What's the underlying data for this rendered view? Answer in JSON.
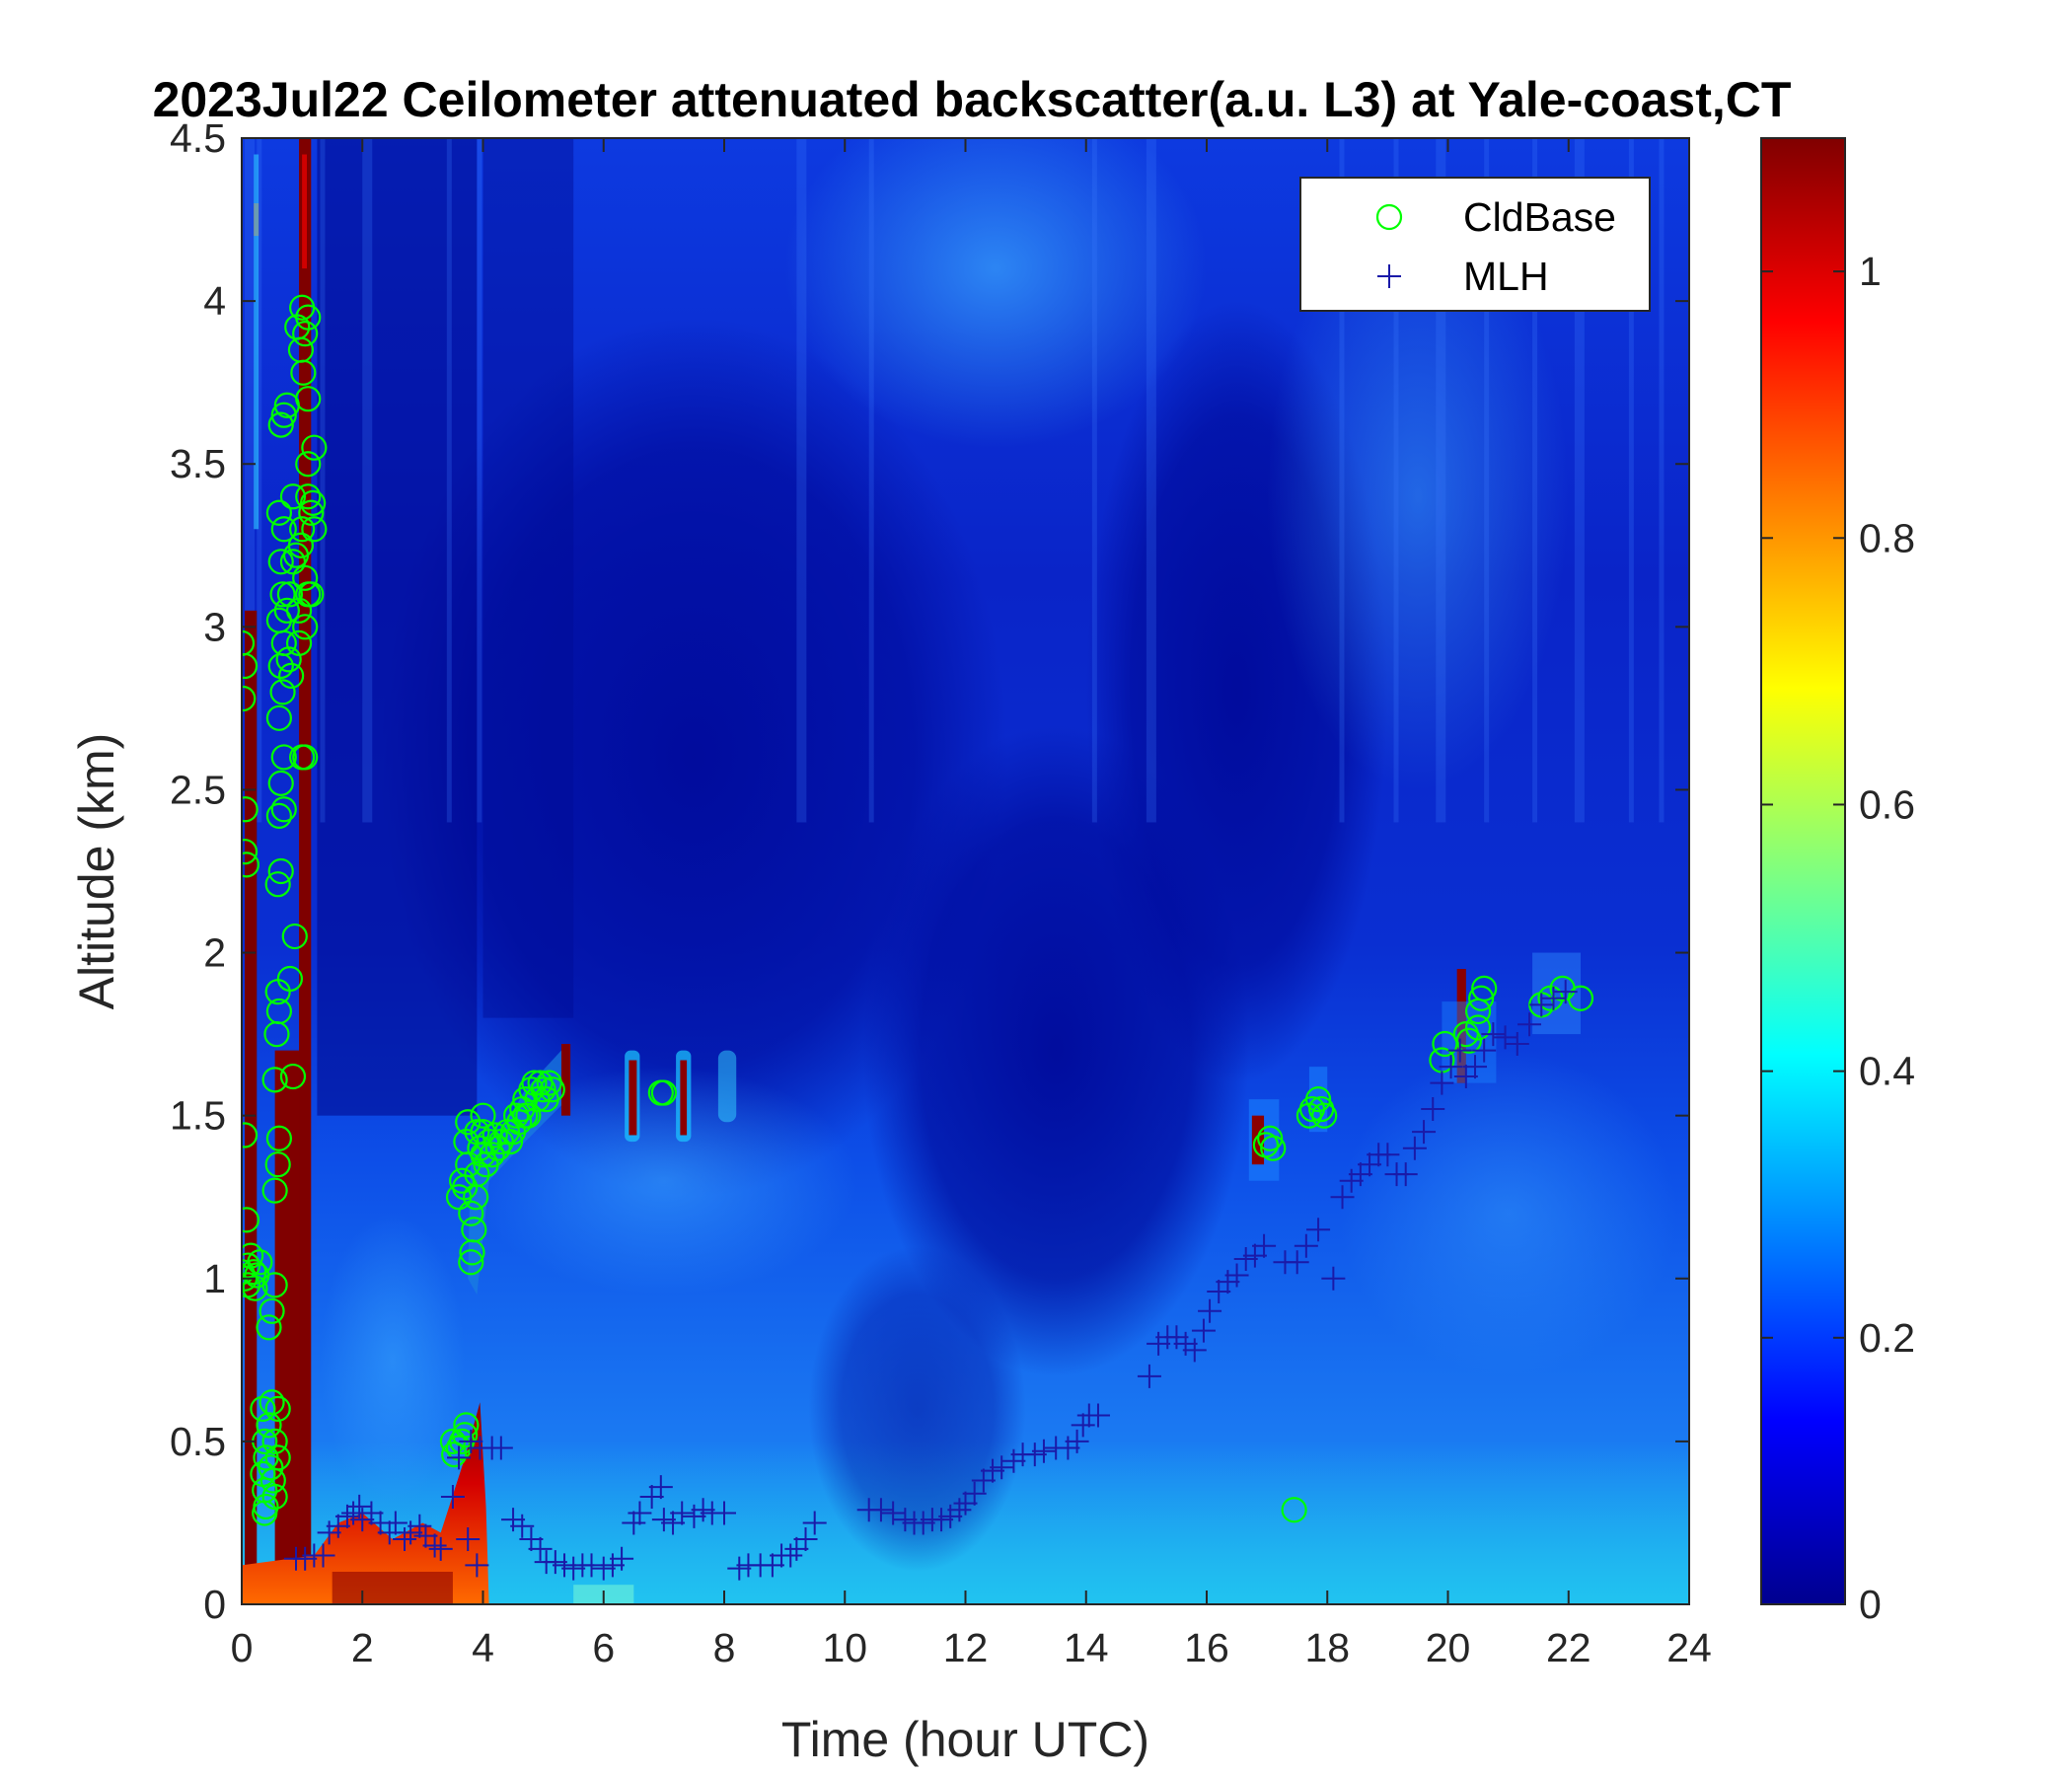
{
  "chart_data": {
    "type": "heatmap",
    "title": "2023Jul22 Ceilometer attenuated backscatter(a.u. L3) at Yale-coast,CT",
    "xlabel": "Time (hour UTC)",
    "ylabel": "Altitude (km)",
    "xlim": [
      0,
      24
    ],
    "ylim": [
      0,
      4.5
    ],
    "xticks": [
      "0",
      "2",
      "4",
      "6",
      "8",
      "10",
      "12",
      "14",
      "16",
      "18",
      "20",
      "22",
      "24"
    ],
    "yticks": [
      "0",
      "0.5",
      "1",
      "1.5",
      "2",
      "2.5",
      "3",
      "3.5",
      "4",
      "4.5"
    ],
    "colorbar": {
      "colormap": "jet",
      "clim": [
        0,
        1.1
      ],
      "ticks": [
        "0",
        "0.2",
        "0.4",
        "0.6",
        "0.8",
        "1"
      ]
    },
    "legend": {
      "position": "top-right",
      "entries": [
        {
          "label": "CldBase",
          "marker": "circle",
          "color": "#00ff00"
        },
        {
          "label": "MLH",
          "marker": "plus",
          "color": "#1a1aa8"
        }
      ]
    },
    "series": [
      {
        "name": "CldBase",
        "marker": "circle",
        "color": "#00ff00",
        "points": [
          [
            0.0,
            2.95
          ],
          [
            0.02,
            2.78
          ],
          [
            0.05,
            2.88
          ],
          [
            0.05,
            2.31
          ],
          [
            0.08,
            2.27
          ],
          [
            0.06,
            2.44
          ],
          [
            0.05,
            1.44
          ],
          [
            0.08,
            1.18
          ],
          [
            0.0,
            1.02
          ],
          [
            0.05,
            1.0
          ],
          [
            0.1,
            1.04
          ],
          [
            0.15,
            1.07
          ],
          [
            0.2,
            1.02
          ],
          [
            0.25,
            1.01
          ],
          [
            0.3,
            1.05
          ],
          [
            0.1,
            0.98
          ],
          [
            0.22,
            0.97
          ],
          [
            0.35,
            0.6
          ],
          [
            0.38,
            0.5
          ],
          [
            0.4,
            0.45
          ],
          [
            0.35,
            0.4
          ],
          [
            0.38,
            0.35
          ],
          [
            0.4,
            0.3
          ],
          [
            0.38,
            0.28
          ],
          [
            0.45,
            0.55
          ],
          [
            0.48,
            0.42
          ],
          [
            0.5,
            0.62
          ],
          [
            0.52,
            0.38
          ],
          [
            0.55,
            0.5
          ],
          [
            0.55,
            0.33
          ],
          [
            0.6,
            0.45
          ],
          [
            0.6,
            0.6
          ],
          [
            0.45,
            0.85
          ],
          [
            0.5,
            0.9
          ],
          [
            0.55,
            0.98
          ],
          [
            0.55,
            1.27
          ],
          [
            0.6,
            1.35
          ],
          [
            0.62,
            1.43
          ],
          [
            0.55,
            1.61
          ],
          [
            0.58,
            1.75
          ],
          [
            0.62,
            1.82
          ],
          [
            0.6,
            1.88
          ],
          [
            0.6,
            2.21
          ],
          [
            0.65,
            2.25
          ],
          [
            0.62,
            2.42
          ],
          [
            0.7,
            2.44
          ],
          [
            0.65,
            2.52
          ],
          [
            0.7,
            2.6
          ],
          [
            0.62,
            2.72
          ],
          [
            0.68,
            2.8
          ],
          [
            0.65,
            2.88
          ],
          [
            0.7,
            2.95
          ],
          [
            0.62,
            3.02
          ],
          [
            0.68,
            3.1
          ],
          [
            0.65,
            3.2
          ],
          [
            0.62,
            3.35
          ],
          [
            0.7,
            3.3
          ],
          [
            0.65,
            3.62
          ],
          [
            0.7,
            3.65
          ],
          [
            0.75,
            3.68
          ],
          [
            0.75,
            3.05
          ],
          [
            0.8,
            3.1
          ],
          [
            0.78,
            2.9
          ],
          [
            0.82,
            2.85
          ],
          [
            0.85,
            3.2
          ],
          [
            0.85,
            3.4
          ],
          [
            0.9,
            3.22
          ],
          [
            0.8,
            1.92
          ],
          [
            0.85,
            1.62
          ],
          [
            0.88,
            2.05
          ],
          [
            0.95,
            2.95
          ],
          [
            0.95,
            3.05
          ],
          [
            0.98,
            3.25
          ],
          [
            1.0,
            3.3
          ],
          [
            1.05,
            3.15
          ],
          [
            1.05,
            3.0
          ],
          [
            1.1,
            3.4
          ],
          [
            1.1,
            3.5
          ],
          [
            1.1,
            3.1
          ],
          [
            1.15,
            3.35
          ],
          [
            1.18,
            3.38
          ],
          [
            1.2,
            3.3
          ],
          [
            0.92,
            3.92
          ],
          [
            0.98,
            3.85
          ],
          [
            1.0,
            3.98
          ],
          [
            1.05,
            3.9
          ],
          [
            1.1,
            3.95
          ],
          [
            1.02,
            3.78
          ],
          [
            1.1,
            3.7
          ],
          [
            1.2,
            3.55
          ],
          [
            1.0,
            2.6
          ],
          [
            1.05,
            2.6
          ],
          [
            1.15,
            3.1
          ],
          [
            3.5,
            0.5
          ],
          [
            3.52,
            0.46
          ],
          [
            3.6,
            0.48
          ],
          [
            3.7,
            0.52
          ],
          [
            3.72,
            0.55
          ],
          [
            3.65,
            0.5
          ],
          [
            3.6,
            1.25
          ],
          [
            3.65,
            1.3
          ],
          [
            3.7,
            1.28
          ],
          [
            3.72,
            1.42
          ],
          [
            3.75,
            1.48
          ],
          [
            3.75,
            1.35
          ],
          [
            3.8,
            1.2
          ],
          [
            3.82,
            1.08
          ],
          [
            3.8,
            1.05
          ],
          [
            3.85,
            1.15
          ],
          [
            3.88,
            1.25
          ],
          [
            3.9,
            1.32
          ],
          [
            3.95,
            1.4
          ],
          [
            4.0,
            1.45
          ],
          [
            4.0,
            1.38
          ],
          [
            4.05,
            1.35
          ],
          [
            4.1,
            1.42
          ],
          [
            4.15,
            1.38
          ],
          [
            4.2,
            1.44
          ],
          [
            4.25,
            1.4
          ],
          [
            4.3,
            1.42
          ],
          [
            4.4,
            1.45
          ],
          [
            4.5,
            1.45
          ],
          [
            4.55,
            1.5
          ],
          [
            4.6,
            1.48
          ],
          [
            4.65,
            1.52
          ],
          [
            4.7,
            1.55
          ],
          [
            4.75,
            1.5
          ],
          [
            4.8,
            1.58
          ],
          [
            4.85,
            1.6
          ],
          [
            4.9,
            1.55
          ],
          [
            4.95,
            1.6
          ],
          [
            5.0,
            1.58
          ],
          [
            5.05,
            1.55
          ],
          [
            5.1,
            1.6
          ],
          [
            5.15,
            1.58
          ],
          [
            3.9,
            1.45
          ],
          [
            4.0,
            1.5
          ],
          [
            4.45,
            1.42
          ],
          [
            4.7,
            1.5
          ],
          [
            6.95,
            1.57
          ],
          [
            7.0,
            1.57
          ],
          [
            16.98,
            1.41
          ],
          [
            17.05,
            1.43
          ],
          [
            17.1,
            1.4
          ],
          [
            17.45,
            0.29
          ],
          [
            17.7,
            1.5
          ],
          [
            17.75,
            1.52
          ],
          [
            17.85,
            1.55
          ],
          [
            17.9,
            1.52
          ],
          [
            17.95,
            1.5
          ],
          [
            19.9,
            1.67
          ],
          [
            19.95,
            1.72
          ],
          [
            20.3,
            1.75
          ],
          [
            20.35,
            1.73
          ],
          [
            20.5,
            1.77
          ],
          [
            20.5,
            1.82
          ],
          [
            20.55,
            1.86
          ],
          [
            20.6,
            1.89
          ],
          [
            21.55,
            1.84
          ],
          [
            21.7,
            1.86
          ],
          [
            21.9,
            1.89
          ],
          [
            22.2,
            1.86
          ]
        ]
      },
      {
        "name": "MLH",
        "marker": "plus",
        "color": "#1a1aa8",
        "points": [
          [
            0.9,
            0.14
          ],
          [
            1.05,
            0.14
          ],
          [
            1.2,
            0.15
          ],
          [
            1.35,
            0.15
          ],
          [
            1.45,
            0.22
          ],
          [
            1.6,
            0.24
          ],
          [
            1.75,
            0.27
          ],
          [
            1.85,
            0.28
          ],
          [
            1.95,
            0.3
          ],
          [
            2.0,
            0.26
          ],
          [
            2.15,
            0.28
          ],
          [
            2.3,
            0.25
          ],
          [
            2.45,
            0.22
          ],
          [
            2.55,
            0.25
          ],
          [
            2.7,
            0.2
          ],
          [
            2.8,
            0.22
          ],
          [
            2.95,
            0.24
          ],
          [
            3.05,
            0.21
          ],
          [
            3.2,
            0.18
          ],
          [
            3.3,
            0.17
          ],
          [
            3.5,
            0.33
          ],
          [
            3.6,
            0.45
          ],
          [
            3.8,
            0.5
          ],
          [
            3.95,
            0.48
          ],
          [
            4.15,
            0.48
          ],
          [
            4.3,
            0.48
          ],
          [
            3.9,
            0.12
          ],
          [
            3.75,
            0.2
          ],
          [
            4.5,
            0.26
          ],
          [
            4.65,
            0.24
          ],
          [
            4.8,
            0.2
          ],
          [
            4.95,
            0.17
          ],
          [
            5.05,
            0.13
          ],
          [
            5.2,
            0.13
          ],
          [
            5.35,
            0.12
          ],
          [
            5.5,
            0.11
          ],
          [
            5.65,
            0.12
          ],
          [
            5.8,
            0.12
          ],
          [
            6.0,
            0.11
          ],
          [
            6.15,
            0.12
          ],
          [
            6.3,
            0.14
          ],
          [
            6.5,
            0.25
          ],
          [
            6.6,
            0.28
          ],
          [
            6.8,
            0.33
          ],
          [
            6.95,
            0.36
          ],
          [
            7.0,
            0.26
          ],
          [
            7.15,
            0.25
          ],
          [
            7.3,
            0.28
          ],
          [
            7.5,
            0.27
          ],
          [
            7.65,
            0.29
          ],
          [
            7.8,
            0.28
          ],
          [
            8.0,
            0.28
          ],
          [
            8.25,
            0.11
          ],
          [
            8.4,
            0.12
          ],
          [
            8.6,
            0.12
          ],
          [
            8.8,
            0.12
          ],
          [
            8.95,
            0.15
          ],
          [
            9.1,
            0.15
          ],
          [
            9.2,
            0.17
          ],
          [
            9.35,
            0.2
          ],
          [
            9.5,
            0.25
          ],
          [
            10.4,
            0.29
          ],
          [
            10.6,
            0.29
          ],
          [
            10.8,
            0.28
          ],
          [
            11.0,
            0.26
          ],
          [
            11.15,
            0.25
          ],
          [
            11.3,
            0.25
          ],
          [
            11.45,
            0.26
          ],
          [
            11.6,
            0.26
          ],
          [
            11.75,
            0.27
          ],
          [
            11.9,
            0.29
          ],
          [
            12.0,
            0.31
          ],
          [
            12.15,
            0.34
          ],
          [
            12.3,
            0.38
          ],
          [
            12.45,
            0.41
          ],
          [
            12.6,
            0.42
          ],
          [
            12.8,
            0.44
          ],
          [
            12.95,
            0.46
          ],
          [
            13.15,
            0.46
          ],
          [
            13.3,
            0.47
          ],
          [
            13.5,
            0.48
          ],
          [
            13.7,
            0.48
          ],
          [
            13.85,
            0.5
          ],
          [
            13.95,
            0.55
          ],
          [
            14.05,
            0.58
          ],
          [
            14.2,
            0.58
          ],
          [
            15.05,
            0.7
          ],
          [
            15.2,
            0.8
          ],
          [
            15.35,
            0.82
          ],
          [
            15.5,
            0.82
          ],
          [
            15.65,
            0.8
          ],
          [
            15.8,
            0.78
          ],
          [
            15.95,
            0.84
          ],
          [
            16.05,
            0.9
          ],
          [
            16.2,
            0.96
          ],
          [
            16.35,
            0.99
          ],
          [
            16.5,
            1.01
          ],
          [
            16.65,
            1.06
          ],
          [
            16.8,
            1.07
          ],
          [
            16.95,
            1.1
          ],
          [
            17.3,
            1.05
          ],
          [
            17.5,
            1.05
          ],
          [
            17.65,
            1.1
          ],
          [
            17.85,
            1.15
          ],
          [
            18.1,
            1.0
          ],
          [
            18.25,
            1.25
          ],
          [
            18.4,
            1.3
          ],
          [
            18.55,
            1.32
          ],
          [
            18.7,
            1.35
          ],
          [
            18.85,
            1.38
          ],
          [
            19.0,
            1.38
          ],
          [
            19.15,
            1.32
          ],
          [
            19.3,
            1.32
          ],
          [
            19.45,
            1.4
          ],
          [
            19.6,
            1.45
          ],
          [
            19.75,
            1.52
          ],
          [
            19.9,
            1.6
          ],
          [
            20.05,
            1.65
          ],
          [
            20.2,
            1.7
          ],
          [
            20.3,
            1.62
          ],
          [
            20.45,
            1.65
          ],
          [
            20.6,
            1.7
          ],
          [
            20.75,
            1.75
          ],
          [
            20.95,
            1.74
          ],
          [
            21.15,
            1.72
          ],
          [
            21.35,
            1.78
          ],
          [
            21.55,
            1.84
          ],
          [
            21.75,
            1.86
          ],
          [
            21.95,
            1.88
          ]
        ]
      }
    ]
  }
}
